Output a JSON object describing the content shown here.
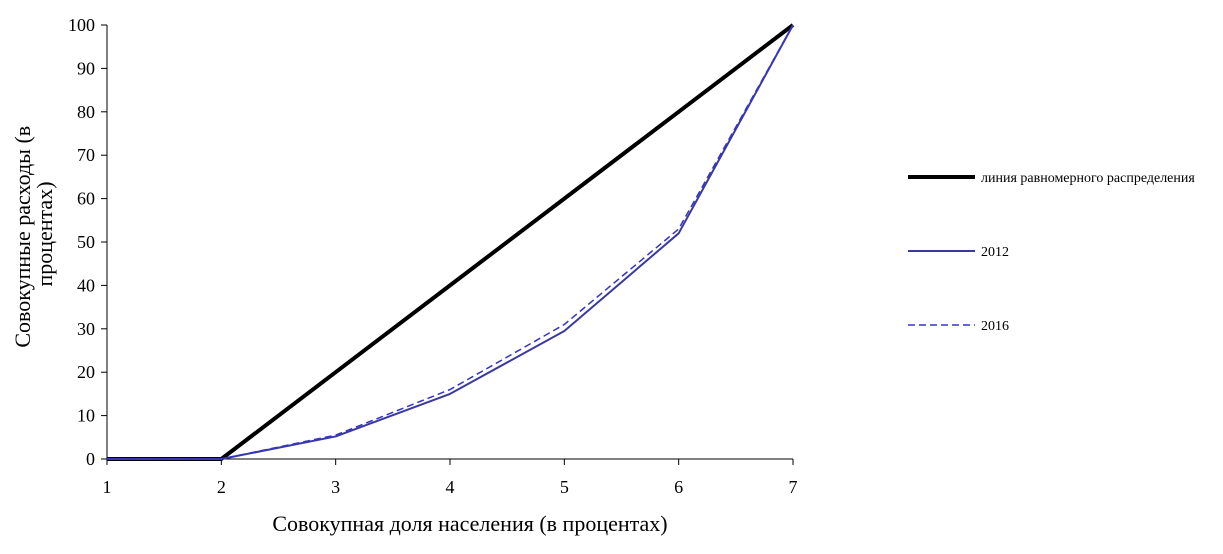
{
  "chart_data": {
    "type": "line",
    "title": "",
    "xlabel": "Совокупная доля населения (в процентах)",
    "ylabel_line1": "Совокупные расходы (в",
    "ylabel_line2": "процентах)",
    "x": [
      1,
      2,
      3,
      4,
      5,
      6,
      7
    ],
    "xlim": [
      1,
      7
    ],
    "ylim": [
      0,
      100
    ],
    "yticks": [
      0,
      10,
      20,
      30,
      40,
      50,
      60,
      70,
      80,
      90,
      100
    ],
    "grid": false,
    "legend_position": "right",
    "series": [
      {
        "name": "линия равномерного распределения",
        "values": [
          0,
          0,
          20,
          40,
          60,
          80,
          100
        ],
        "color": "#000000",
        "style": "solid-thick"
      },
      {
        "name": "2012",
        "values": [
          0,
          0,
          5.2,
          15,
          29.5,
          52,
          100
        ],
        "color": "#3a3a9c",
        "style": "solid"
      },
      {
        "name": "2016",
        "values": [
          0,
          0,
          5.5,
          16,
          31,
          53,
          100
        ],
        "color": "#3333cc",
        "style": "dashed"
      }
    ]
  }
}
